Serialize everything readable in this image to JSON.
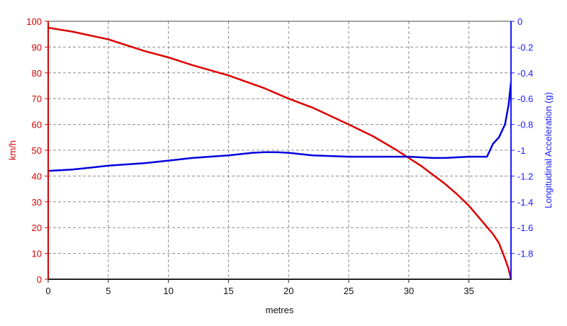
{
  "chart_data": {
    "type": "line",
    "xlabel": "metres",
    "ylabel_left": "km/h",
    "ylabel_right": "Longitudinal Acceleration (g)",
    "xlim": [
      0,
      38.5
    ],
    "ylim_left": [
      0,
      100
    ],
    "ylim_right": [
      -2,
      0
    ],
    "x_ticks": [
      "0",
      "5",
      "10",
      "15",
      "20",
      "25",
      "30",
      "35"
    ],
    "x_tick_values": [
      0,
      5,
      10,
      15,
      20,
      25,
      30,
      35
    ],
    "y_left_ticks": [
      "0",
      "10",
      "20",
      "30",
      "40",
      "50",
      "60",
      "70",
      "80",
      "90",
      "100"
    ],
    "y_left_tick_values": [
      0,
      10,
      20,
      30,
      40,
      50,
      60,
      70,
      80,
      90,
      100
    ],
    "y_right_ticks": [
      "0",
      "-0.2",
      "-0.4",
      "-0.6",
      "-0.8",
      "-1",
      "-1.2",
      "-1.4",
      "-1.6",
      "-1.8"
    ],
    "y_right_tick_values": [
      0,
      -0.2,
      -0.4,
      -0.6,
      -0.8,
      -1,
      -1.2,
      -1.4,
      -1.6,
      -1.8
    ],
    "grid": true,
    "series": [
      {
        "axis": "left",
        "color": "#dd0000",
        "x": [
          0,
          2,
          5,
          8,
          10,
          12,
          15,
          18,
          20,
          22,
          25,
          27,
          29,
          30,
          31,
          32,
          33,
          34,
          35,
          36,
          37,
          37.5,
          38,
          38.3,
          38.5
        ],
        "values": [
          97.5,
          96,
          93,
          88.5,
          86,
          83,
          79,
          74,
          70,
          66.5,
          60,
          55.5,
          50,
          47,
          44,
          40.5,
          37,
          33,
          28.5,
          23,
          17.5,
          14,
          8,
          4,
          0
        ]
      },
      {
        "axis": "right",
        "color": "#0000dd",
        "x": [
          0,
          2,
          5,
          8,
          10,
          12,
          15,
          17,
          18,
          19,
          20,
          22,
          25,
          28,
          30,
          32,
          33,
          35,
          36,
          36.5,
          37,
          37.5,
          38,
          38.3,
          38.5
        ],
        "values": [
          -1.16,
          -1.15,
          -1.12,
          -1.1,
          -1.08,
          -1.06,
          -1.04,
          -1.02,
          -1.015,
          -1.015,
          -1.02,
          -1.04,
          -1.05,
          -1.05,
          -1.05,
          -1.06,
          -1.06,
          -1.05,
          -1.05,
          -1.05,
          -0.95,
          -0.9,
          -0.8,
          -0.65,
          -0.47
        ]
      }
    ]
  }
}
